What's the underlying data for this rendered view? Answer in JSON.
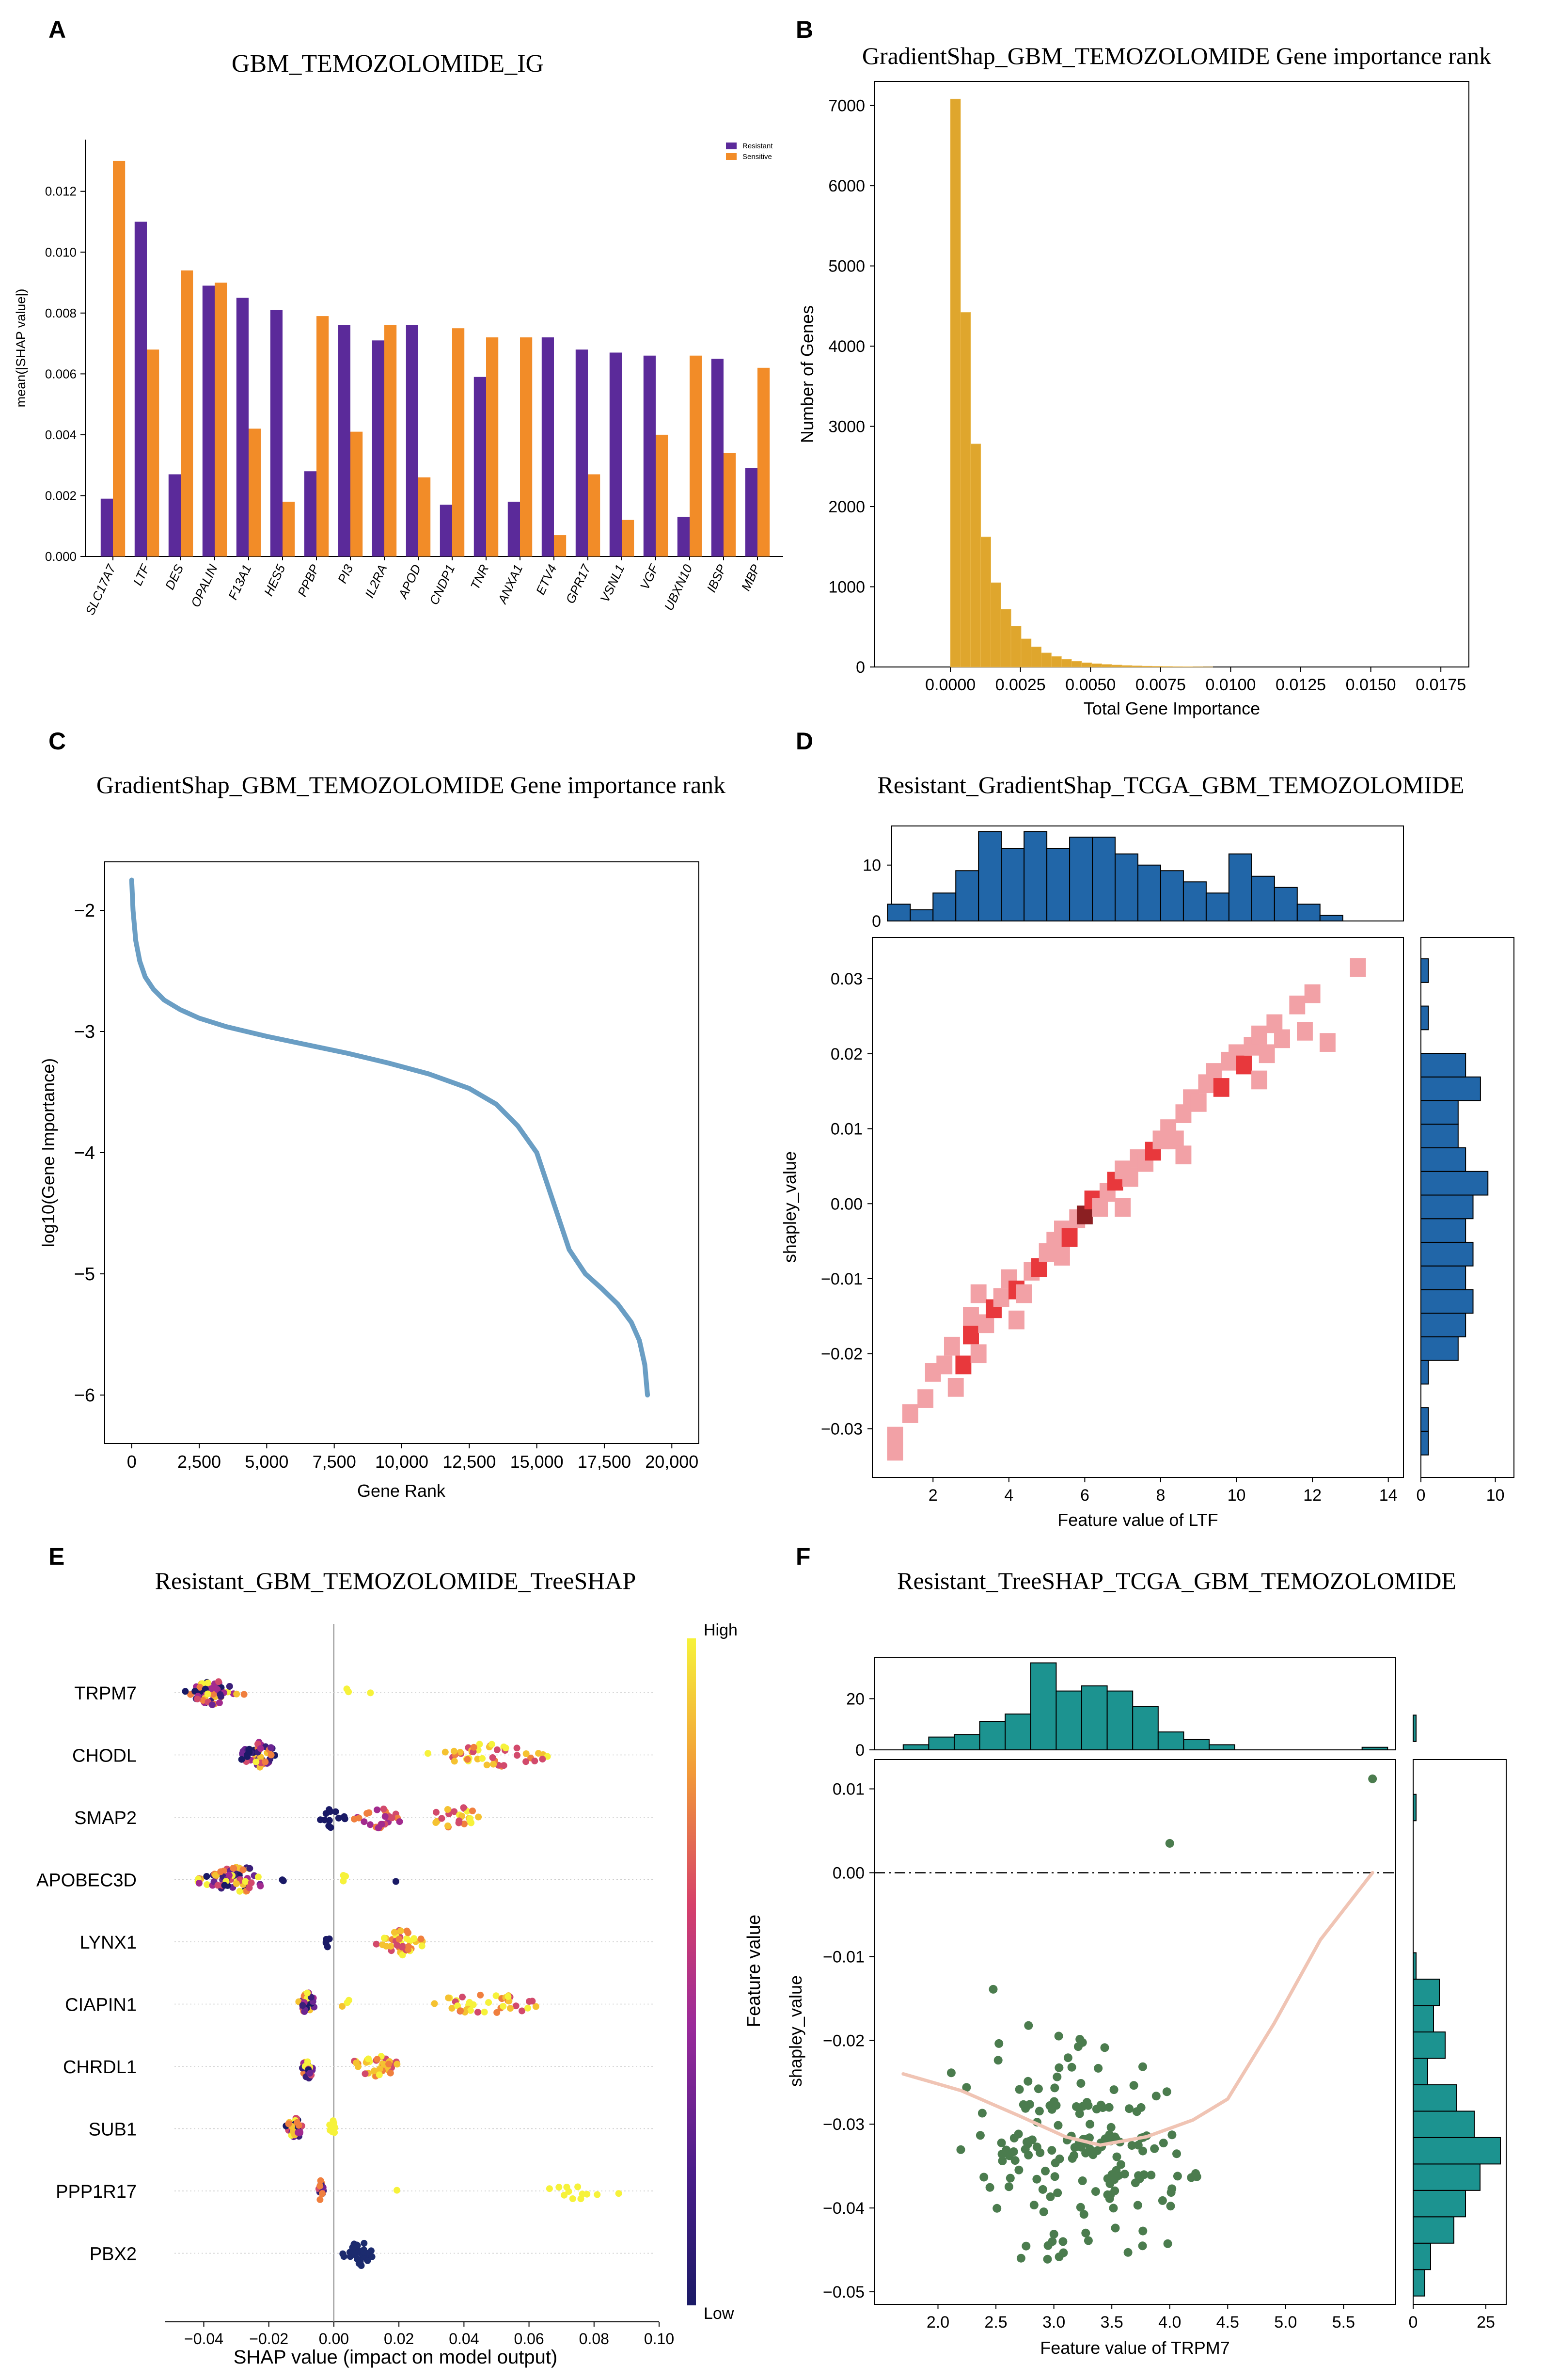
{
  "figure": {
    "panel_letters": [
      "A",
      "B",
      "C",
      "D",
      "E",
      "F"
    ]
  },
  "colors": {
    "resistant": "#5b2a9a",
    "sensitive": "#f28c28",
    "hist_b": "#dfa62d",
    "line_c": "#6a9ec4",
    "hist_d": "#2166a8",
    "hist_f": "#1c9390",
    "scatter_f": "#4b7c4e",
    "lowess_f": "#f0c4b4"
  },
  "chart_data": [
    {
      "panel": "A",
      "type": "bar",
      "title": "GBM_TEMOZOLOMIDE_IG",
      "xlabel": "",
      "ylabel": "mean(|SHAP value|)",
      "ylim": [
        0,
        0.0137
      ],
      "yticks": [
        "0.000",
        "0.002",
        "0.004",
        "0.006",
        "0.008",
        "0.010",
        "0.012"
      ],
      "legend": [
        "Resistant",
        "Sensitive"
      ],
      "categories": [
        "SLC17A7",
        "LTF",
        "DES",
        "OPALIN",
        "F13A1",
        "HES5",
        "PPBP",
        "PI3",
        "IL2RA",
        "APOD",
        "CNDP1",
        "TNR",
        "ANXA1",
        "ETV4",
        "GPR17",
        "VSNL1",
        "VGF",
        "UBXN10",
        "IBSP",
        "MBP"
      ],
      "series": [
        {
          "name": "Resistant",
          "values": [
            0.0019,
            0.011,
            0.0027,
            0.0089,
            0.0085,
            0.0081,
            0.0028,
            0.0076,
            0.0071,
            0.0076,
            0.0017,
            0.0059,
            0.0018,
            0.0072,
            0.0068,
            0.0067,
            0.0066,
            0.0013,
            0.0065,
            0.0029
          ]
        },
        {
          "name": "Sensitive",
          "values": [
            0.013,
            0.0068,
            0.0094,
            0.009,
            0.0042,
            0.0018,
            0.0079,
            0.0041,
            0.0076,
            0.0026,
            0.0075,
            0.0072,
            0.0072,
            0.0007,
            0.0027,
            0.0012,
            0.004,
            0.0066,
            0.0034,
            0.0062
          ]
        }
      ]
    },
    {
      "panel": "B",
      "type": "bar",
      "title": "GradientShap_GBM_TEMOZOLOMIDE Gene importance rank",
      "xlabel": "Total Gene Importance",
      "ylabel": "Number of Genes",
      "xlim": [
        -0.0027,
        0.0185
      ],
      "ylim": [
        0,
        7300
      ],
      "xticks": [
        "0.0000",
        "0.0025",
        "0.0050",
        "0.0075",
        "0.0100",
        "0.0125",
        "0.0150",
        "0.0175"
      ],
      "yticks": [
        "0",
        "1000",
        "2000",
        "3000",
        "4000",
        "5000",
        "6000",
        "7000"
      ],
      "bin_width": 0.00036,
      "bin_start": 0.0,
      "values": [
        7080,
        4420,
        2780,
        1620,
        1050,
        720,
        510,
        350,
        250,
        175,
        130,
        95,
        70,
        52,
        40,
        31,
        24,
        18,
        14,
        10,
        8,
        6,
        4,
        3,
        2,
        1
      ]
    },
    {
      "panel": "C",
      "type": "line",
      "title": "GradientShap_GBM_TEMOZOLOMIDE Gene importance rank",
      "xlabel": "Gene Rank",
      "ylabel": "log10(Gene Importance)",
      "xlim": [
        -1000,
        21000
      ],
      "ylim": [
        -6.4,
        -1.6
      ],
      "xticks": [
        "0",
        "2,500",
        "5,000",
        "7,500",
        "10,000",
        "12,500",
        "15,000",
        "17,500",
        "20,000"
      ],
      "yticks": [
        "−2",
        "−3",
        "−4",
        "−5",
        "−6"
      ],
      "x": [
        0,
        50,
        150,
        300,
        500,
        800,
        1200,
        1800,
        2500,
        3500,
        5000,
        6500,
        8000,
        9500,
        11000,
        12500,
        13500,
        14300,
        15000,
        15600,
        16200,
        16800,
        17400,
        18000,
        18500,
        18800,
        19000,
        19100
      ],
      "y": [
        -1.75,
        -2.0,
        -2.25,
        -2.42,
        -2.55,
        -2.65,
        -2.74,
        -2.82,
        -2.89,
        -2.96,
        -3.04,
        -3.11,
        -3.18,
        -3.26,
        -3.35,
        -3.47,
        -3.6,
        -3.78,
        -4.0,
        -4.4,
        -4.8,
        -5.0,
        -5.12,
        -5.25,
        -5.4,
        -5.55,
        -5.75,
        -6.0
      ]
    },
    {
      "panel": "D",
      "type": "heatmap",
      "title": "Resistant_GradientShap_TCGA_GBM_TEMOZOLOMIDE",
      "xlabel": "Feature value of LTF",
      "ylabel": "shapley_value",
      "xlim": [
        0.4,
        14.4
      ],
      "ylim": [
        -0.0365,
        0.0355
      ],
      "xticks": [
        "2",
        "4",
        "6",
        "8",
        "10",
        "12",
        "14"
      ],
      "yticks": [
        "−0.03",
        "−0.02",
        "−0.01",
        "0.00",
        "0.01",
        "0.02",
        "0.03"
      ],
      "cell_size": [
        0.42,
        0.0025
      ],
      "cells": [
        [
          1.0,
          -0.033,
          1
        ],
        [
          1.0,
          -0.031,
          1
        ],
        [
          1.4,
          -0.028,
          1
        ],
        [
          1.8,
          -0.026,
          1
        ],
        [
          2.0,
          -0.0225,
          1
        ],
        [
          2.3,
          -0.0215,
          1
        ],
        [
          2.5,
          -0.019,
          1
        ],
        [
          2.8,
          -0.0215,
          2
        ],
        [
          3.0,
          -0.0175,
          2
        ],
        [
          3.2,
          -0.02,
          1
        ],
        [
          3.0,
          -0.015,
          1
        ],
        [
          3.2,
          -0.012,
          1
        ],
        [
          3.4,
          -0.016,
          1
        ],
        [
          3.6,
          -0.014,
          2
        ],
        [
          3.8,
          -0.0125,
          1
        ],
        [
          4.0,
          -0.01,
          1
        ],
        [
          4.2,
          -0.0115,
          2
        ],
        [
          4.4,
          -0.012,
          1
        ],
        [
          4.6,
          -0.009,
          1
        ],
        [
          4.8,
          -0.0085,
          2
        ],
        [
          5.0,
          -0.0065,
          1
        ],
        [
          5.2,
          -0.005,
          1
        ],
        [
          5.4,
          -0.0035,
          1
        ],
        [
          5.6,
          -0.0045,
          2
        ],
        [
          5.8,
          -0.002,
          1
        ],
        [
          6.0,
          -0.0015,
          3
        ],
        [
          6.2,
          0.0005,
          2
        ],
        [
          6.4,
          -0.0005,
          1
        ],
        [
          6.6,
          0.0015,
          1
        ],
        [
          6.8,
          0.003,
          2
        ],
        [
          7.0,
          0.0045,
          1
        ],
        [
          7.2,
          0.0035,
          1
        ],
        [
          7.4,
          0.006,
          1
        ],
        [
          7.6,
          0.0055,
          1
        ],
        [
          7.8,
          0.007,
          2
        ],
        [
          8.0,
          0.0085,
          1
        ],
        [
          8.2,
          0.01,
          1
        ],
        [
          8.4,
          0.0085,
          1
        ],
        [
          8.6,
          0.012,
          1
        ],
        [
          8.8,
          0.014,
          1
        ],
        [
          9.0,
          0.0135,
          1
        ],
        [
          9.2,
          0.016,
          1
        ],
        [
          9.4,
          0.0175,
          1
        ],
        [
          9.6,
          0.0155,
          2
        ],
        [
          9.8,
          0.019,
          1
        ],
        [
          10.0,
          0.02,
          1
        ],
        [
          10.2,
          0.0185,
          2
        ],
        [
          10.4,
          0.021,
          1
        ],
        [
          10.6,
          0.0225,
          1
        ],
        [
          10.8,
          0.02,
          1
        ],
        [
          11.0,
          0.024,
          1
        ],
        [
          11.2,
          0.022,
          1
        ],
        [
          11.6,
          0.0265,
          1
        ],
        [
          11.8,
          0.023,
          1
        ],
        [
          12.0,
          0.028,
          1
        ],
        [
          12.4,
          0.0215,
          1
        ],
        [
          13.2,
          0.0315,
          1
        ],
        [
          7.0,
          -0.0005,
          1
        ],
        [
          5.4,
          -0.007,
          1
        ],
        [
          8.6,
          0.0065,
          1
        ],
        [
          4.2,
          -0.0155,
          1
        ],
        [
          2.6,
          -0.0245,
          1
        ],
        [
          10.6,
          0.0165,
          1
        ]
      ],
      "top_hist": {
        "ylim": [
          0,
          17
        ],
        "yticks": [
          "0",
          "10"
        ],
        "bin_edges": [
          0.8,
          1.4,
          2.0,
          2.6,
          3.2,
          3.8,
          4.4,
          5.0,
          5.6,
          6.2,
          6.8,
          7.4,
          8.0,
          8.6,
          9.2,
          9.8,
          10.4,
          11.0,
          11.6,
          12.2,
          12.8,
          13.4
        ],
        "counts": [
          3,
          2,
          5,
          9,
          16,
          13,
          16,
          13,
          15,
          15,
          12,
          10,
          9,
          7,
          5,
          12,
          8,
          6,
          3,
          1,
          0
        ]
      },
      "right_hist": {
        "xlim": [
          0,
          12.5
        ],
        "xticks": [
          "0",
          "10"
        ],
        "bin_start": -0.0335,
        "bin_width": 0.00315,
        "counts": [
          1,
          1,
          0,
          1,
          5,
          6,
          7,
          6,
          7,
          6,
          7,
          9,
          6,
          5,
          5,
          8,
          6,
          0,
          1,
          0,
          1,
          0,
          0
        ]
      }
    },
    {
      "panel": "E",
      "type": "scatter",
      "title": "Resistant_GBM_TEMOZOLOMIDE_TreeSHAP",
      "xlabel": "SHAP value (impact on model output)",
      "ylabel": "",
      "xlim": [
        -0.052,
        0.1
      ],
      "xticks": [
        "−0.04",
        "−0.02",
        "0.00",
        "0.02",
        "0.04",
        "0.06",
        "0.08",
        "0.10"
      ],
      "features": [
        "TRPM7",
        "CHODL",
        "SMAP2",
        "APOBEC3D",
        "LYNX1",
        "CIAPIN1",
        "CHRDL1",
        "SUB1",
        "PPP1R17",
        "PBX2"
      ],
      "colorbar": {
        "high": "High",
        "low": "Low",
        "label": "Feature value"
      }
    },
    {
      "panel": "F",
      "type": "scatter",
      "title": "Resistant_TreeSHAP_TCGA_GBM_TEMOZOLOMIDE",
      "xlabel": "Feature value of TRPM7",
      "ylabel": "shapley_value",
      "xlim": [
        1.45,
        5.95
      ],
      "ylim": [
        -0.0515,
        0.0135
      ],
      "xticks": [
        "2.0",
        "2.5",
        "3.0",
        "3.5",
        "4.0",
        "4.5",
        "5.0",
        "5.5"
      ],
      "yticks": [
        "0.01",
        "0.00",
        "−0.01",
        "−0.02",
        "−0.03",
        "−0.04",
        "−0.05"
      ],
      "outliers": [
        [
          5.75,
          0.0112
        ],
        [
          4.0,
          0.0035
        ]
      ],
      "lowess": {
        "x": [
          1.7,
          2.2,
          2.7,
          3.1,
          3.4,
          3.8,
          4.2,
          4.5,
          4.9,
          5.3,
          5.75
        ],
        "y": [
          -0.024,
          -0.026,
          -0.029,
          -0.0315,
          -0.0325,
          -0.0315,
          -0.0295,
          -0.027,
          -0.018,
          -0.008,
          0.0
        ]
      },
      "top_hist": {
        "ylim": [
          0,
          36
        ],
        "yticks": [
          "0",
          "20"
        ],
        "bin_edges": [
          1.7,
          1.92,
          2.14,
          2.36,
          2.58,
          2.8,
          3.02,
          3.24,
          3.46,
          3.68,
          3.9,
          4.12,
          4.34,
          4.56,
          4.78,
          5.0,
          5.22,
          5.44,
          5.66,
          5.88
        ],
        "counts": [
          2,
          5,
          6,
          11,
          14,
          34,
          23,
          25,
          23,
          17,
          7,
          4,
          2,
          0,
          0,
          0,
          0,
          0,
          1
        ]
      },
      "right_hist": {
        "xlim": [
          0,
          32
        ],
        "xticks": [
          "0",
          "25"
        ],
        "bin_start": -0.0505,
        "bin_width": 0.00315,
        "counts": [
          4,
          6,
          14,
          18,
          23,
          30,
          21,
          15,
          5,
          11,
          7,
          9,
          1,
          0,
          0,
          0,
          0,
          0,
          1,
          0,
          0,
          1
        ]
      }
    }
  ]
}
